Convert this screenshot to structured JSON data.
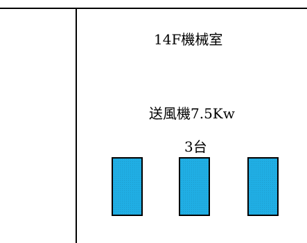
{
  "room": {
    "label": "14F機械室"
  },
  "equipment": {
    "name": "送風機7.5Kw",
    "count": "3台",
    "unit_color": "#20aee4",
    "units": 3
  }
}
